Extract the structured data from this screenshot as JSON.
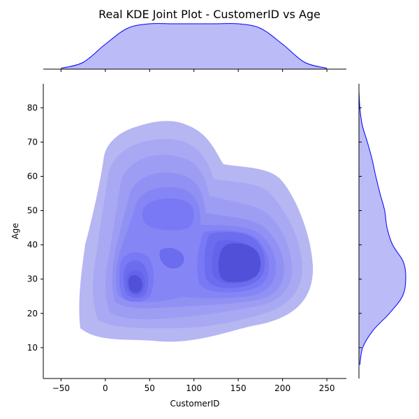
{
  "chart_data": {
    "type": "kde_joint",
    "title": "Real KDE Joint Plot - CustomerID vs Age",
    "xlabel": "CustomerID",
    "ylabel": "Age",
    "xlim": [
      -70,
      272
    ],
    "ylim": [
      1,
      87
    ],
    "xticks": [
      -50,
      0,
      50,
      100,
      150,
      200,
      250
    ],
    "yticks": [
      10,
      20,
      30,
      40,
      50,
      60,
      70,
      80
    ],
    "xtick_labels": [
      "−50",
      "0",
      "50",
      "100",
      "150",
      "200",
      "250"
    ],
    "ytick_labels": [
      "10",
      "20",
      "30",
      "40",
      "50",
      "60",
      "70",
      "80"
    ],
    "color": "#0000ff",
    "fill_color": "#bbbbf7",
    "grid": false,
    "legend": "none",
    "joint_density_peaks": [
      {
        "x": 155,
        "y": 34,
        "relative_density": 1.0
      },
      {
        "x": 33,
        "y": 28,
        "relative_density": 0.85
      },
      {
        "x": 75,
        "y": 49,
        "relative_density": 0.55
      },
      {
        "x": 78,
        "y": 37,
        "relative_density": 0.45
      }
    ],
    "x_marginal": {
      "x": [
        -50,
        -25,
        0,
        25,
        50,
        75,
        100,
        125,
        150,
        175,
        200,
        225,
        250
      ],
      "relative_density": [
        0.02,
        0.15,
        0.55,
        0.9,
        1.0,
        1.0,
        1.0,
        1.0,
        1.0,
        0.9,
        0.55,
        0.15,
        0.02
      ]
    },
    "y_marginal": {
      "y": [
        5,
        10,
        15,
        20,
        25,
        30,
        35,
        40,
        45,
        50,
        55,
        60,
        65,
        70,
        75,
        80,
        85
      ],
      "relative_density": [
        0.02,
        0.08,
        0.3,
        0.65,
        0.93,
        1.0,
        0.95,
        0.72,
        0.6,
        0.55,
        0.45,
        0.36,
        0.28,
        0.18,
        0.07,
        0.02,
        0.0
      ]
    }
  }
}
